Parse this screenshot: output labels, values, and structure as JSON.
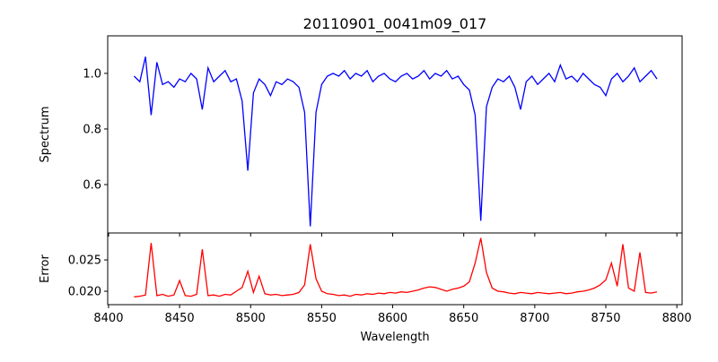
{
  "chart_data": [
    {
      "type": "line",
      "title": "20110901_0041m09_017",
      "xlabel": "",
      "ylabel": "Spectrum",
      "xlim": [
        8399.4,
        8803.7
      ],
      "ylim": [
        0.426,
        1.135
      ],
      "yticks": [
        0.6,
        0.8,
        1.0
      ],
      "ytick_labels": [
        "0.6",
        "0.8",
        "1.0"
      ],
      "color": "#0000ff",
      "x_start": 8418,
      "x_step": 4,
      "values": [
        0.99,
        0.97,
        1.06,
        0.85,
        1.04,
        0.96,
        0.97,
        0.95,
        0.98,
        0.97,
        1.0,
        0.98,
        0.87,
        1.02,
        0.97,
        0.99,
        1.01,
        0.97,
        0.98,
        0.9,
        0.65,
        0.93,
        0.98,
        0.96,
        0.92,
        0.97,
        0.96,
        0.98,
        0.97,
        0.95,
        0.86,
        0.45,
        0.86,
        0.96,
        0.99,
        1.0,
        0.99,
        1.01,
        0.98,
        1.0,
        0.99,
        1.01,
        0.97,
        0.99,
        1.0,
        0.98,
        0.97,
        0.99,
        1.0,
        0.98,
        0.99,
        1.01,
        0.98,
        1.0,
        0.99,
        1.01,
        0.98,
        0.99,
        0.96,
        0.94,
        0.85,
        0.47,
        0.88,
        0.95,
        0.98,
        0.97,
        0.99,
        0.95,
        0.87,
        0.97,
        0.99,
        0.96,
        0.98,
        1.0,
        0.97,
        1.03,
        0.98,
        0.99,
        0.97,
        1.0,
        0.98,
        0.96,
        0.95,
        0.92,
        0.98,
        1.0,
        0.97,
        0.99,
        1.02,
        0.97,
        0.99,
        1.01,
        0.98
      ]
    },
    {
      "type": "line",
      "xlabel": "Wavelength",
      "ylabel": "Error",
      "xlim": [
        8399.4,
        8803.7
      ],
      "ylim": [
        0.01786,
        0.0293
      ],
      "yticks": [
        0.02,
        0.025
      ],
      "ytick_labels": [
        "0.020",
        "0.025"
      ],
      "xticks": [
        8400,
        8450,
        8500,
        8550,
        8600,
        8650,
        8700,
        8750,
        8800
      ],
      "xtick_labels": [
        "8400",
        "8450",
        "8500",
        "8550",
        "8600",
        "8650",
        "8700",
        "8750",
        "8800"
      ],
      "color": "#ff0000",
      "x_start": 8418,
      "x_step": 4,
      "values": [
        0.0191,
        0.0192,
        0.0194,
        0.0277,
        0.0193,
        0.0195,
        0.0192,
        0.0194,
        0.0217,
        0.0193,
        0.0192,
        0.0195,
        0.0267,
        0.0193,
        0.0194,
        0.0192,
        0.0195,
        0.0194,
        0.02,
        0.0206,
        0.0232,
        0.0198,
        0.0224,
        0.0196,
        0.0194,
        0.0195,
        0.0193,
        0.0194,
        0.0195,
        0.0198,
        0.021,
        0.0275,
        0.022,
        0.02,
        0.0196,
        0.0195,
        0.0193,
        0.0194,
        0.0192,
        0.0195,
        0.0194,
        0.0196,
        0.0195,
        0.0197,
        0.0196,
        0.0198,
        0.0197,
        0.0199,
        0.0198,
        0.02,
        0.0202,
        0.0205,
        0.0207,
        0.0206,
        0.0203,
        0.02,
        0.0203,
        0.0205,
        0.0208,
        0.0215,
        0.0245,
        0.0285,
        0.023,
        0.0205,
        0.02,
        0.0199,
        0.0197,
        0.0196,
        0.0198,
        0.0197,
        0.0196,
        0.0198,
        0.0197,
        0.0196,
        0.0197,
        0.0198,
        0.0196,
        0.0197,
        0.0199,
        0.02,
        0.0202,
        0.0205,
        0.021,
        0.0218,
        0.0245,
        0.0208,
        0.0275,
        0.0205,
        0.02,
        0.0262,
        0.0198,
        0.0197,
        0.0199
      ]
    }
  ]
}
